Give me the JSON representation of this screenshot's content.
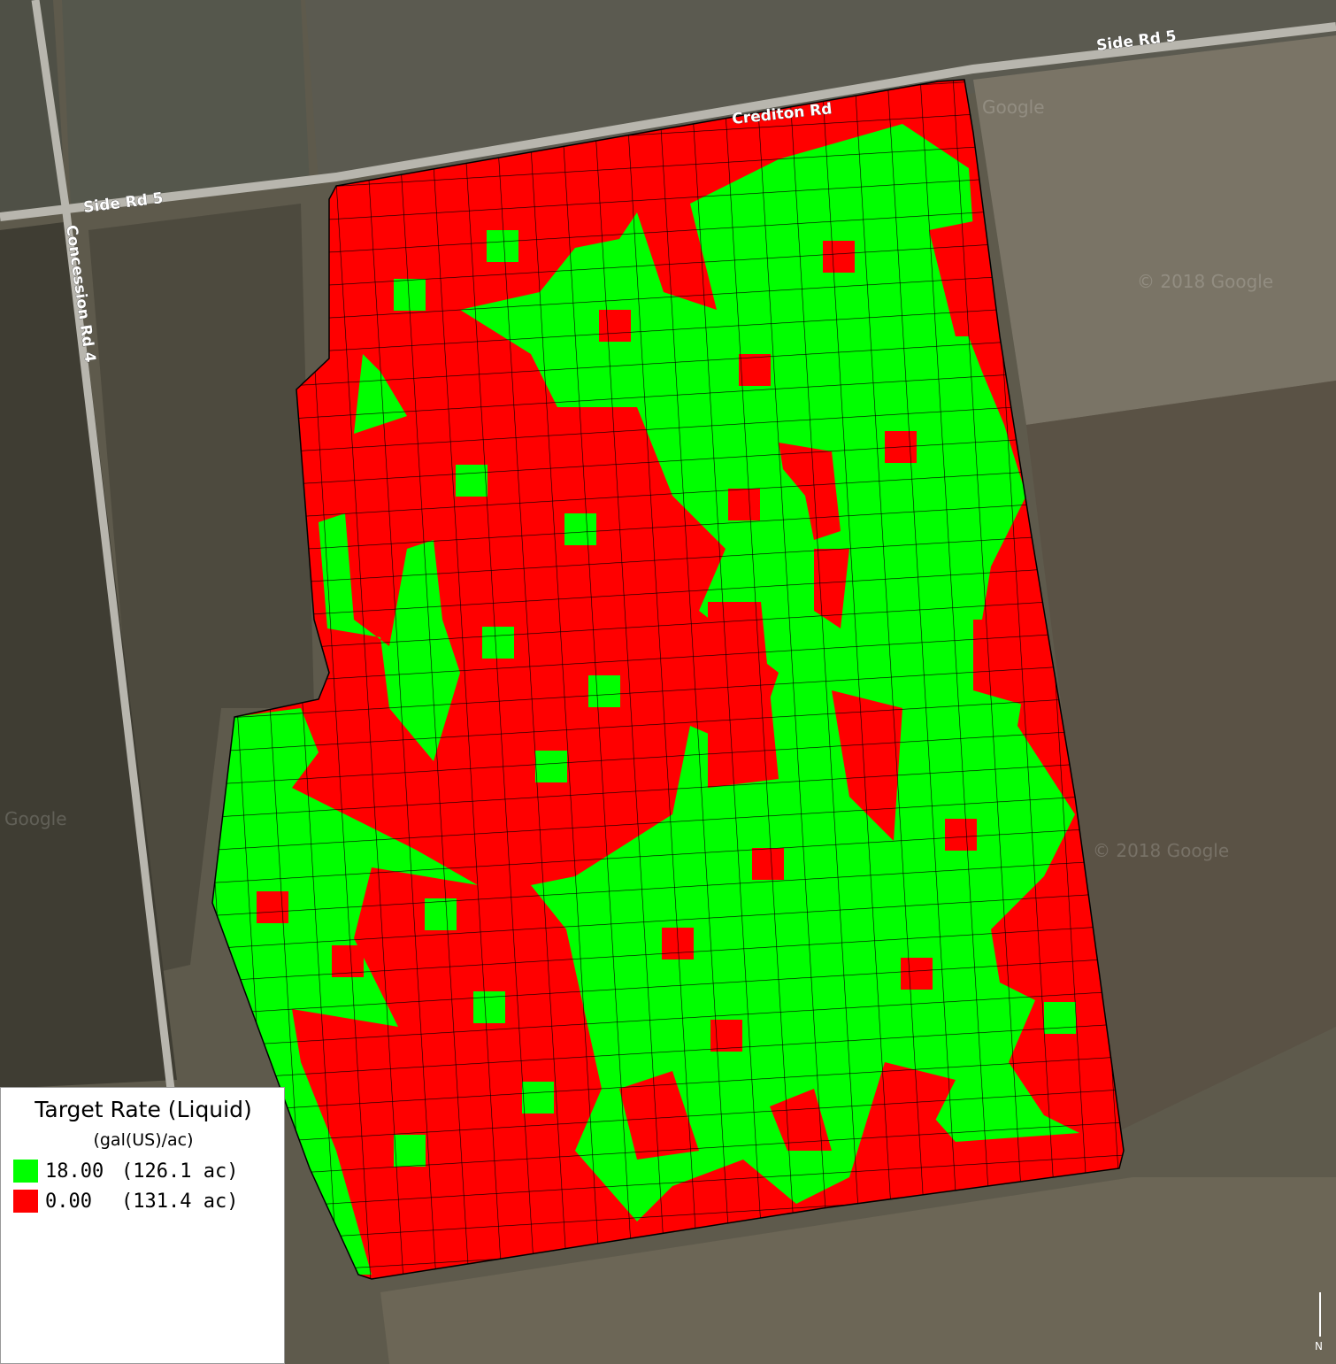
{
  "map": {
    "roads": [
      "Side Rd 5",
      "Crediton Rd",
      "Side Rd 5",
      "Concession Rd 4"
    ],
    "watermarks": [
      "Google",
      "© 2018 Google",
      "Google",
      "© 2018 Google"
    ],
    "north": "N"
  },
  "legend": {
    "title": "Target Rate (Liquid)",
    "unit": "(gal(US)/ac)",
    "entries": [
      {
        "rate": "18.00",
        "area": "(126.1 ac)",
        "color": "#00ff00"
      },
      {
        "rate": "0.00",
        "area": "(131.4 ac)",
        "color": "#ff0000"
      }
    ]
  }
}
